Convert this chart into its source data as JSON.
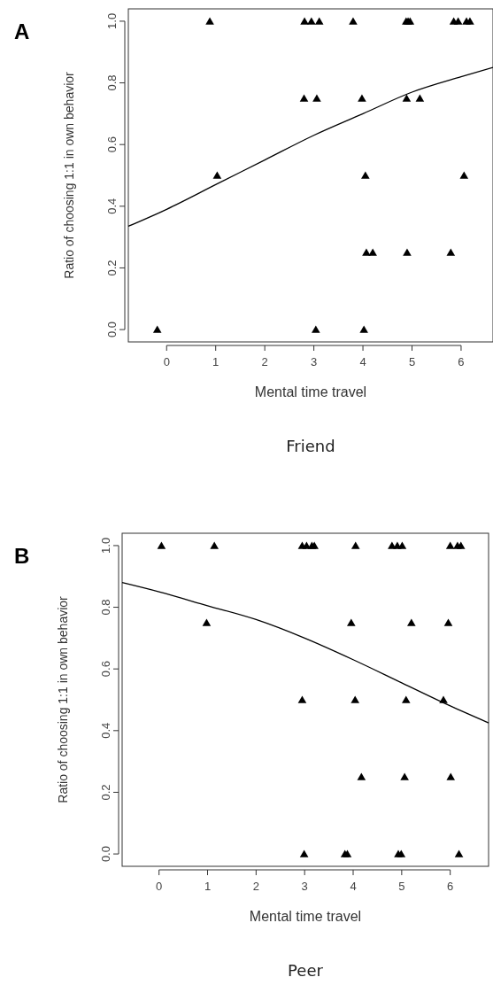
{
  "chart_data": [
    {
      "type": "scatter",
      "title": "A",
      "xlabel": "Mental time travel",
      "ylabel": "Ratio of choosing 1:1 in own behavior",
      "annotations": [
        "Friend"
      ],
      "xlim": [
        -0.78,
        6.65
      ],
      "ylim": [
        -0.04,
        1.04
      ],
      "xticks": [
        0,
        1,
        2,
        3,
        4,
        5,
        6
      ],
      "yticks": [
        {
          "value": 0,
          "label": "0.0"
        },
        {
          "value": 0.2,
          "label": "0.2"
        },
        {
          "value": 0.4,
          "label": "0.4"
        },
        {
          "value": 0.6,
          "label": "0.6"
        },
        {
          "value": 0.8,
          "label": "0.8"
        },
        {
          "value": 1,
          "label": "1.0"
        }
      ],
      "series": [
        {
          "marker": "triangle",
          "color": "#000000",
          "x": [
            0.88,
            2.81,
            2.95,
            3.11,
            3.8,
            4.88,
            4.92,
            4.96,
            5.85,
            5.94,
            6.11,
            6.18,
            2.8,
            3.06,
            3.98,
            4.89,
            5.16,
            1.03,
            4.05,
            6.06,
            4.07,
            4.2,
            4.9,
            5.79,
            -0.19,
            3.04,
            4.02
          ],
          "values": [
            1,
            1,
            1,
            1,
            1,
            1,
            1,
            1,
            1,
            1,
            1,
            1,
            0.75,
            0.75,
            0.75,
            0.75,
            0.75,
            0.5,
            0.5,
            0.5,
            0.25,
            0.25,
            0.25,
            0.25,
            0,
            0,
            0
          ]
        },
        {
          "type": "line",
          "color": "#000000",
          "x": [
            -0.78,
            0,
            1,
            2,
            3,
            4,
            5,
            6,
            6.65
          ],
          "values": [
            0.335,
            0.39,
            0.47,
            0.55,
            0.63,
            0.7,
            0.77,
            0.82,
            0.85
          ]
        }
      ]
    },
    {
      "type": "scatter",
      "title": "B",
      "xlabel": "Mental time travel",
      "ylabel": "Ratio of choosing 1:1 in own behavior",
      "annotations": [
        "Peer"
      ],
      "xlim": [
        -0.76,
        6.79
      ],
      "ylim": [
        -0.04,
        1.04
      ],
      "xticks": [
        0,
        1,
        2,
        3,
        4,
        5,
        6
      ],
      "yticks": [
        {
          "value": 0,
          "label": "0.0"
        },
        {
          "value": 0.2,
          "label": "0.2"
        },
        {
          "value": 0.4,
          "label": "0.4"
        },
        {
          "value": 0.6,
          "label": "0.6"
        },
        {
          "value": 0.8,
          "label": "0.8"
        },
        {
          "value": 1,
          "label": "1.0"
        }
      ],
      "series": [
        {
          "marker": "triangle",
          "color": "#000000",
          "x": [
            0.05,
            1.14,
            2.95,
            3.04,
            3.15,
            3.2,
            4.05,
            4.8,
            4.91,
            5.01,
            6.0,
            6.15,
            6.22,
            0.98,
            3.96,
            5.2,
            5.96,
            2.95,
            4.04,
            5.09,
            5.86,
            4.17,
            5.06,
            6.01,
            2.99,
            3.83,
            3.88,
            4.93,
            4.99,
            6.18
          ],
          "values": [
            1,
            1,
            1,
            1,
            1,
            1,
            1,
            1,
            1,
            1,
            1,
            1,
            1,
            0.75,
            0.75,
            0.75,
            0.75,
            0.5,
            0.5,
            0.5,
            0.5,
            0.25,
            0.25,
            0.25,
            0,
            0,
            0,
            0,
            0,
            0
          ]
        },
        {
          "type": "line",
          "color": "#000000",
          "x": [
            -0.76,
            0,
            1,
            2,
            3,
            4,
            5,
            6,
            6.79
          ],
          "values": [
            0.88,
            0.85,
            0.805,
            0.76,
            0.7,
            0.63,
            0.555,
            0.48,
            0.425
          ]
        }
      ]
    }
  ]
}
